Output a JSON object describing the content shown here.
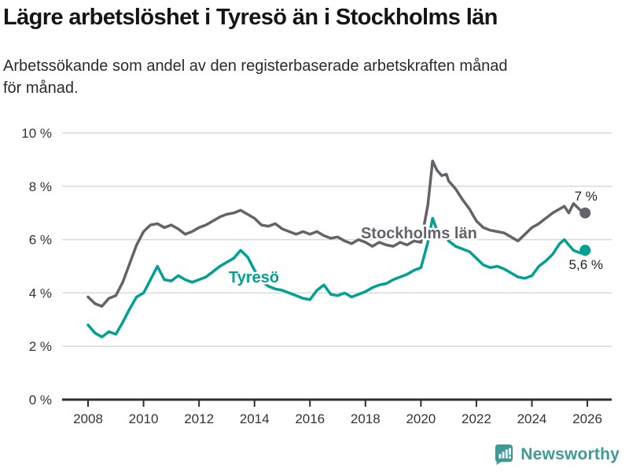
{
  "header": {
    "title": "Lägre arbetslöshet i Tyresö än i Stockholms län",
    "subtitle_line1": "Arbetssökande som andel av den registerbaserade arbetskraften månad",
    "subtitle_line2": "för månad."
  },
  "footer": {
    "brand": "Newsworthy",
    "brand_color": "#3e9a94"
  },
  "chart_data": {
    "type": "line",
    "title": "Lägre arbetslöshet i Tyresö än i Stockholms län",
    "xlabel": "",
    "ylabel": "",
    "grid": true,
    "legend_position": "inline-labels",
    "colors": {
      "gridline": "#d9d9d9",
      "axis": "#2e2e2e",
      "tick_label": "#333333",
      "annotation": "#222222"
    },
    "x_axis": {
      "ticks": [
        {
          "value": 2008,
          "label": "2008"
        },
        {
          "value": 2010,
          "label": "2010"
        },
        {
          "value": 2012,
          "label": "2012"
        },
        {
          "value": 2014,
          "label": "2014"
        },
        {
          "value": 2016,
          "label": "2016"
        },
        {
          "value": 2018,
          "label": "2018"
        },
        {
          "value": 2020,
          "label": "2020"
        },
        {
          "value": 2022,
          "label": "2022"
        },
        {
          "value": 2024,
          "label": "2024"
        },
        {
          "value": 2026,
          "label": "2026"
        }
      ]
    },
    "y_axis": {
      "range": [
        0,
        10
      ],
      "ticks": [
        {
          "value": 0,
          "label": "0 %"
        },
        {
          "value": 2,
          "label": "2 %"
        },
        {
          "value": 4,
          "label": "4 %"
        },
        {
          "value": 6,
          "label": "6 %"
        },
        {
          "value": 8,
          "label": "8 %"
        },
        {
          "value": 10,
          "label": "10 %"
        }
      ]
    },
    "x": [
      2008.0,
      2008.25,
      2008.5,
      2008.75,
      2009.0,
      2009.25,
      2009.5,
      2009.75,
      2010.0,
      2010.25,
      2010.5,
      2010.75,
      2011.0,
      2011.25,
      2011.5,
      2011.75,
      2012.0,
      2012.25,
      2012.5,
      2012.75,
      2013.0,
      2013.25,
      2013.5,
      2013.75,
      2014.0,
      2014.25,
      2014.5,
      2014.75,
      2015.0,
      2015.25,
      2015.5,
      2015.75,
      2016.0,
      2016.25,
      2016.5,
      2016.75,
      2017.0,
      2017.25,
      2017.5,
      2017.75,
      2018.0,
      2018.25,
      2018.5,
      2018.75,
      2019.0,
      2019.25,
      2019.5,
      2019.75,
      2020.0,
      2020.25,
      2020.42,
      2020.58,
      2020.75,
      2020.92,
      2021.0,
      2021.25,
      2021.5,
      2021.75,
      2022.0,
      2022.25,
      2022.5,
      2022.75,
      2023.0,
      2023.25,
      2023.5,
      2023.75,
      2024.0,
      2024.25,
      2024.5,
      2024.75,
      2025.0,
      2025.17,
      2025.33,
      2025.5,
      2025.75,
      2025.92
    ],
    "series": [
      {
        "name": "Stockholms län",
        "color": "#63636b",
        "end_value_label": "7 %",
        "label": {
          "text": "Stockholms län",
          "x": 2019.93,
          "y": 6.25
        },
        "values": [
          3.85,
          3.6,
          3.5,
          3.8,
          3.9,
          4.4,
          5.1,
          5.8,
          6.3,
          6.55,
          6.6,
          6.45,
          6.55,
          6.4,
          6.2,
          6.3,
          6.45,
          6.55,
          6.7,
          6.85,
          6.95,
          7.0,
          7.1,
          6.95,
          6.8,
          6.55,
          6.5,
          6.6,
          6.4,
          6.3,
          6.2,
          6.3,
          6.2,
          6.3,
          6.15,
          6.05,
          6.1,
          5.95,
          5.85,
          6.0,
          5.9,
          5.75,
          5.9,
          5.8,
          5.75,
          5.9,
          5.8,
          5.95,
          5.9,
          7.3,
          8.95,
          8.6,
          8.4,
          8.45,
          8.2,
          7.9,
          7.5,
          7.15,
          6.7,
          6.45,
          6.35,
          6.3,
          6.25,
          6.1,
          5.95,
          6.2,
          6.45,
          6.6,
          6.8,
          7.0,
          7.15,
          7.25,
          7.0,
          7.35,
          7.1,
          7.0
        ]
      },
      {
        "name": "Tyresö",
        "color": "#00a192",
        "end_value_label": "5,6 %",
        "label": {
          "text": "Tyresö",
          "x": 2013.98,
          "y": 4.6
        },
        "values": [
          2.8,
          2.5,
          2.35,
          2.55,
          2.45,
          2.9,
          3.4,
          3.85,
          4.0,
          4.5,
          5.0,
          4.5,
          4.45,
          4.65,
          4.5,
          4.4,
          4.5,
          4.6,
          4.8,
          5.0,
          5.15,
          5.3,
          5.6,
          5.35,
          4.85,
          4.45,
          4.25,
          4.15,
          4.1,
          4.0,
          3.9,
          3.8,
          3.75,
          4.1,
          4.3,
          3.95,
          3.9,
          4.0,
          3.85,
          3.95,
          4.05,
          4.2,
          4.3,
          4.35,
          4.5,
          4.6,
          4.7,
          4.85,
          4.95,
          5.9,
          6.8,
          6.35,
          6.15,
          6.05,
          5.95,
          5.75,
          5.65,
          5.55,
          5.3,
          5.05,
          4.95,
          5.0,
          4.9,
          4.75,
          4.6,
          4.55,
          4.65,
          5.0,
          5.2,
          5.45,
          5.85,
          6.0,
          5.8,
          5.6,
          5.5,
          5.6
        ]
      }
    ],
    "annotations": [
      {
        "text": "7 %",
        "x": 2025.95,
        "y": 7.64,
        "color": "#222222"
      },
      {
        "text": "5,6 %",
        "x": 2025.95,
        "y": 5.07,
        "color": "#222222"
      }
    ]
  }
}
